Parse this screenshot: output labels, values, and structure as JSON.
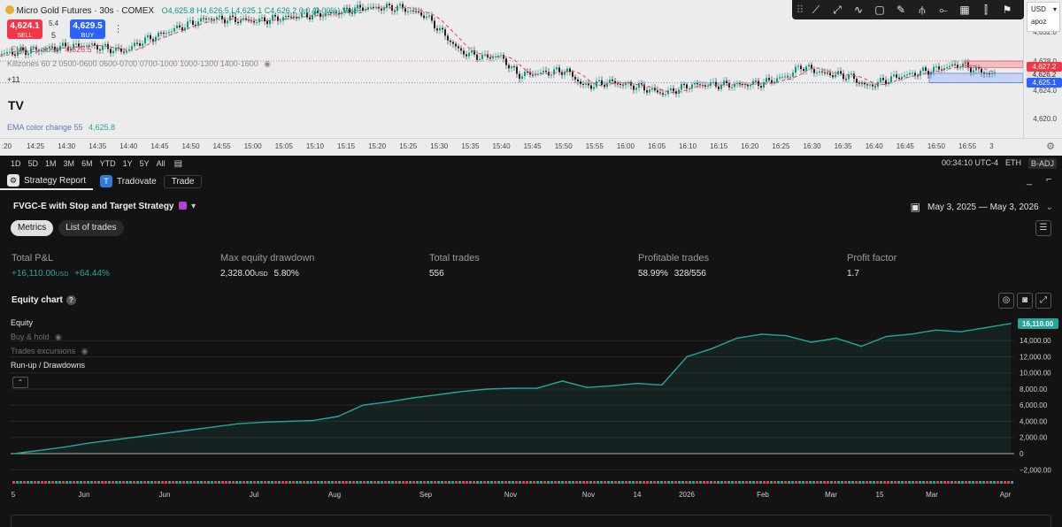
{
  "price_chart": {
    "symbol": "Micro Gold Futures · 30s · COMEX",
    "ohlc": {
      "o": "O4,625.8",
      "h": "H4,626.5",
      "l": "L4,625.1",
      "c": "C4,626.2",
      "chg": "0.0 (0.00%)",
      "vol": "Vol51"
    },
    "sell_price": "4,624.1",
    "sell_label": "SELL",
    "spread_top": "5.4",
    "spread_bottom": "5",
    "buy_price": "4,629.5",
    "buy_label": "BUY",
    "ema_label": "EMA 21 close",
    "ema_value": "4,626.5",
    "killzones_label": "Killzones 60 2 0500-0600 0600-0700 0700-1000 1000-1300 1400-1600",
    "plus_label": "+11",
    "ema_change_label": "EMA color change 55",
    "ema_change_value": "4,625.8",
    "price_ticks": [
      {
        "label": "4,632.0",
        "value": 4632.0
      },
      {
        "label": "4,628.0",
        "value": 4628.0
      },
      {
        "label": "4,624.0",
        "value": 4624.0
      },
      {
        "label": "4,620.0",
        "value": 4620.0
      }
    ],
    "price_tags": [
      {
        "label": "4,626.2",
        "value": 4626.2,
        "color": "#e0e0e0",
        "text_color": "#222"
      },
      {
        "label": "4,627.2",
        "value": 4627.2,
        "color": "#f23645",
        "text_color": "#fff"
      },
      {
        "label": "4,625.1",
        "value": 4625.1,
        "color": "#2962ff",
        "text_color": "#fff"
      }
    ],
    "time_ticks": [
      ":20",
      "14:25",
      "14:30",
      "14:35",
      "14:40",
      "14:45",
      "14:50",
      "14:55",
      "15:00",
      "15:05",
      "15:10",
      "15:15",
      "15:20",
      "15:25",
      "15:30",
      "15:35",
      "15:40",
      "15:45",
      "15:50",
      "15:55",
      "16:00",
      "16:05",
      "16:10",
      "16:15",
      "16:20",
      "16:25",
      "16:30",
      "16:35",
      "16:40",
      "16:45",
      "16:50",
      "16:55",
      "3"
    ],
    "currency": "USD",
    "account": "apoz",
    "colors": {
      "up": "#089981",
      "down": "#222222",
      "ema": "#e8415b",
      "sell": "#f23645",
      "buy": "#2962ff"
    }
  },
  "range_bar": {
    "ranges": [
      "1D",
      "5D",
      "1M",
      "3M",
      "6M",
      "YTD",
      "1Y",
      "5Y",
      "All"
    ],
    "clock": "00:34:10 UTC-4",
    "session": "ETH",
    "adj": "B-ADJ"
  },
  "panel": {
    "tab_strategy": "Strategy Report",
    "tab_broker": "Tradovate",
    "trade_button": "Trade"
  },
  "strategy": {
    "name": "FVGC-E with Stop and Target Strategy",
    "date_range": "May 3, 2025 — May 3, 2026",
    "subtabs": [
      "Metrics",
      "List of trades"
    ]
  },
  "metrics": [
    {
      "label": "Total P&L",
      "value": "+16,110.00",
      "unit": "USD",
      "extra": "+64.44%",
      "positive": true
    },
    {
      "label": "Max equity drawdown",
      "value": "2,328.00",
      "unit": "USD",
      "extra": "5.80%",
      "positive": false
    },
    {
      "label": "Total trades",
      "value": "556",
      "unit": "",
      "extra": "",
      "positive": false
    },
    {
      "label": "Profitable trades",
      "value": "58.99%",
      "unit": "",
      "extra": "328/556",
      "positive": false
    },
    {
      "label": "Profit factor",
      "value": "1.7",
      "unit": "",
      "extra": "",
      "positive": false
    }
  ],
  "equity": {
    "title": "Equity chart",
    "legend": [
      "Equity",
      "Buy & hold",
      "Trades excursions",
      "Run-up / Drawdowns"
    ],
    "last_value_label": "16,110.00",
    "colors": {
      "line": "#26a69a",
      "win": "#26a69a",
      "loss": "#f23645"
    }
  },
  "chart_data": {
    "type": "area",
    "title": "Equity chart",
    "series": [
      {
        "name": "Equity",
        "values": [
          0,
          400,
          800,
          1300,
          1700,
          2100,
          2500,
          2900,
          3300,
          3700,
          3900,
          4000,
          4100,
          4600,
          6000,
          6400,
          6900,
          7300,
          7700,
          8000,
          8100,
          8100,
          9000,
          8200,
          8400,
          8700,
          8500,
          12000,
          13000,
          14300,
          14800,
          14600,
          13800,
          14300,
          13300,
          14500,
          14800,
          15300,
          15100,
          15600,
          16110
        ]
      }
    ],
    "x_tick_labels": [
      "5",
      "Jun",
      "Jun",
      "Jul",
      "Aug",
      "Sep",
      "Nov",
      "Nov",
      "14",
      "2026",
      "Feb",
      "Mar",
      "15",
      "Mar",
      "Apr"
    ],
    "y_ticks": [
      -2000,
      0,
      2000,
      4000,
      6000,
      8000,
      10000,
      12000,
      14000
    ],
    "y_tick_labels": [
      "−2,000.00",
      "0",
      "2,000.00",
      "4,000.00",
      "6,000.00",
      "8,000.00",
      "10,000.00",
      "12,000.00",
      "14,000.00"
    ],
    "ylim": [
      -2300,
      17200
    ],
    "grid": true
  }
}
